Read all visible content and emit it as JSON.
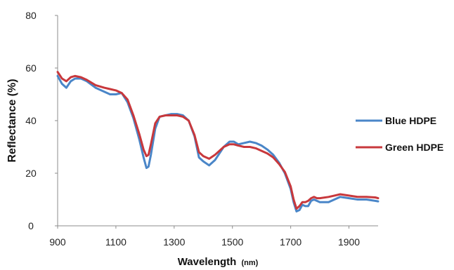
{
  "chart_data": {
    "type": "line",
    "xlabel": "Wavelength",
    "xlabel_unit": "(nm)",
    "ylabel": "Reflectance (%)",
    "xlim": [
      900,
      2000
    ],
    "ylim": [
      0,
      80
    ],
    "x_ticks": [
      "900",
      "1100",
      "1300",
      "1500",
      "1700",
      "1900"
    ],
    "y_ticks": [
      "0",
      "20",
      "40",
      "60",
      "80"
    ],
    "grid": false,
    "legend_position": "right",
    "series": [
      {
        "name": "Blue HDPE",
        "color": "#4a86c8",
        "x": [
          900,
          915,
          930,
          945,
          960,
          980,
          1000,
          1030,
          1060,
          1080,
          1100,
          1120,
          1140,
          1160,
          1180,
          1195,
          1205,
          1212,
          1220,
          1235,
          1250,
          1270,
          1290,
          1310,
          1330,
          1350,
          1370,
          1385,
          1400,
          1420,
          1440,
          1470,
          1490,
          1505,
          1520,
          1540,
          1560,
          1580,
          1600,
          1620,
          1640,
          1660,
          1680,
          1700,
          1710,
          1720,
          1730,
          1740,
          1750,
          1760,
          1770,
          1780,
          1790,
          1800,
          1830,
          1850,
          1870,
          1900,
          1930,
          1960,
          1990,
          2000
        ],
        "y": [
          57,
          54,
          52.5,
          55,
          56,
          56,
          55,
          52.5,
          51,
          50,
          50,
          50.5,
          47,
          41,
          33,
          26,
          22,
          22.5,
          27,
          37,
          41.5,
          42,
          42.5,
          42.5,
          42,
          40,
          34,
          26,
          24.5,
          23,
          25,
          30,
          32,
          32,
          31,
          31.5,
          32,
          31.5,
          30.5,
          29,
          27,
          24,
          20,
          14,
          9,
          5.5,
          6,
          8,
          7.5,
          7.5,
          9.5,
          10,
          9.5,
          9,
          9,
          10,
          11,
          10.5,
          10,
          10,
          9.5,
          9.3
        ]
      },
      {
        "name": "Green HDPE",
        "color": "#c8383c",
        "x": [
          900,
          915,
          930,
          945,
          960,
          980,
          1000,
          1030,
          1060,
          1080,
          1100,
          1120,
          1140,
          1160,
          1180,
          1195,
          1205,
          1212,
          1220,
          1235,
          1250,
          1270,
          1290,
          1310,
          1330,
          1350,
          1370,
          1385,
          1400,
          1420,
          1440,
          1470,
          1490,
          1505,
          1520,
          1540,
          1560,
          1580,
          1600,
          1620,
          1640,
          1660,
          1680,
          1700,
          1710,
          1720,
          1730,
          1740,
          1750,
          1760,
          1770,
          1780,
          1790,
          1800,
          1830,
          1850,
          1870,
          1900,
          1930,
          1960,
          1990,
          2000
        ],
        "y": [
          58.5,
          56,
          55,
          56.5,
          57,
          56.5,
          55.5,
          53.5,
          52.5,
          52,
          51.5,
          50.5,
          48,
          42,
          35,
          29,
          26.5,
          27,
          31,
          39,
          41.5,
          42,
          42,
          42,
          41.5,
          40,
          34.5,
          28,
          26.5,
          25.5,
          27,
          30,
          31,
          31,
          30.5,
          30,
          30,
          29.5,
          28.5,
          27.5,
          26,
          23.5,
          20.5,
          15,
          10,
          6.5,
          7.5,
          9,
          9,
          9.5,
          10.5,
          11,
          10.5,
          10.5,
          11,
          11.5,
          12,
          11.5,
          11,
          11,
          10.8,
          10.5
        ]
      }
    ]
  }
}
